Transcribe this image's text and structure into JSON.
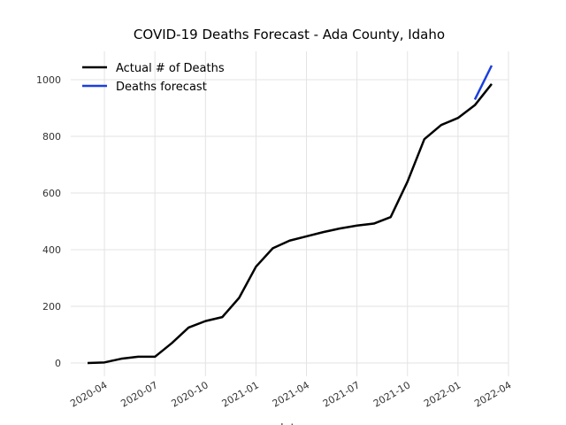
{
  "chart_data": {
    "type": "line",
    "title": "COVID-19 Deaths Forecast - Ada County, Idaho",
    "xlabel": "date",
    "x": [
      "2020-03",
      "2020-04",
      "2020-05",
      "2020-06",
      "2020-07",
      "2020-08",
      "2020-09",
      "2020-10",
      "2020-11",
      "2020-12",
      "2021-01",
      "2021-02",
      "2021-03",
      "2021-04",
      "2021-05",
      "2021-06",
      "2021-07",
      "2021-08",
      "2021-09",
      "2021-10",
      "2021-11",
      "2021-12",
      "2022-01",
      "2022-02",
      "2022-03"
    ],
    "series": [
      {
        "name": "Actual # of Deaths",
        "color": "#000000",
        "values": [
          0,
          2,
          15,
          22,
          22,
          70,
          125,
          148,
          162,
          230,
          340,
          405,
          432,
          447,
          462,
          475,
          485,
          492,
          515,
          640,
          790,
          840,
          865,
          910,
          985
        ]
      },
      {
        "name": "Deaths forecast",
        "color": "#1a3fe0",
        "values": [
          null,
          null,
          null,
          null,
          null,
          null,
          null,
          null,
          null,
          null,
          null,
          null,
          null,
          null,
          null,
          null,
          null,
          null,
          null,
          null,
          null,
          null,
          null,
          930,
          1050
        ]
      }
    ],
    "xlim": [
      "2020-02",
      "2022-04"
    ],
    "xticks": [
      "2020-04",
      "2020-07",
      "2020-10",
      "2021-01",
      "2021-04",
      "2021-07",
      "2021-10",
      "2022-01",
      "2022-04"
    ],
    "ylim": [
      -47,
      1100
    ],
    "yticks": [
      0,
      200,
      400,
      600,
      800,
      1000
    ],
    "grid": true,
    "legend": "upper left"
  }
}
